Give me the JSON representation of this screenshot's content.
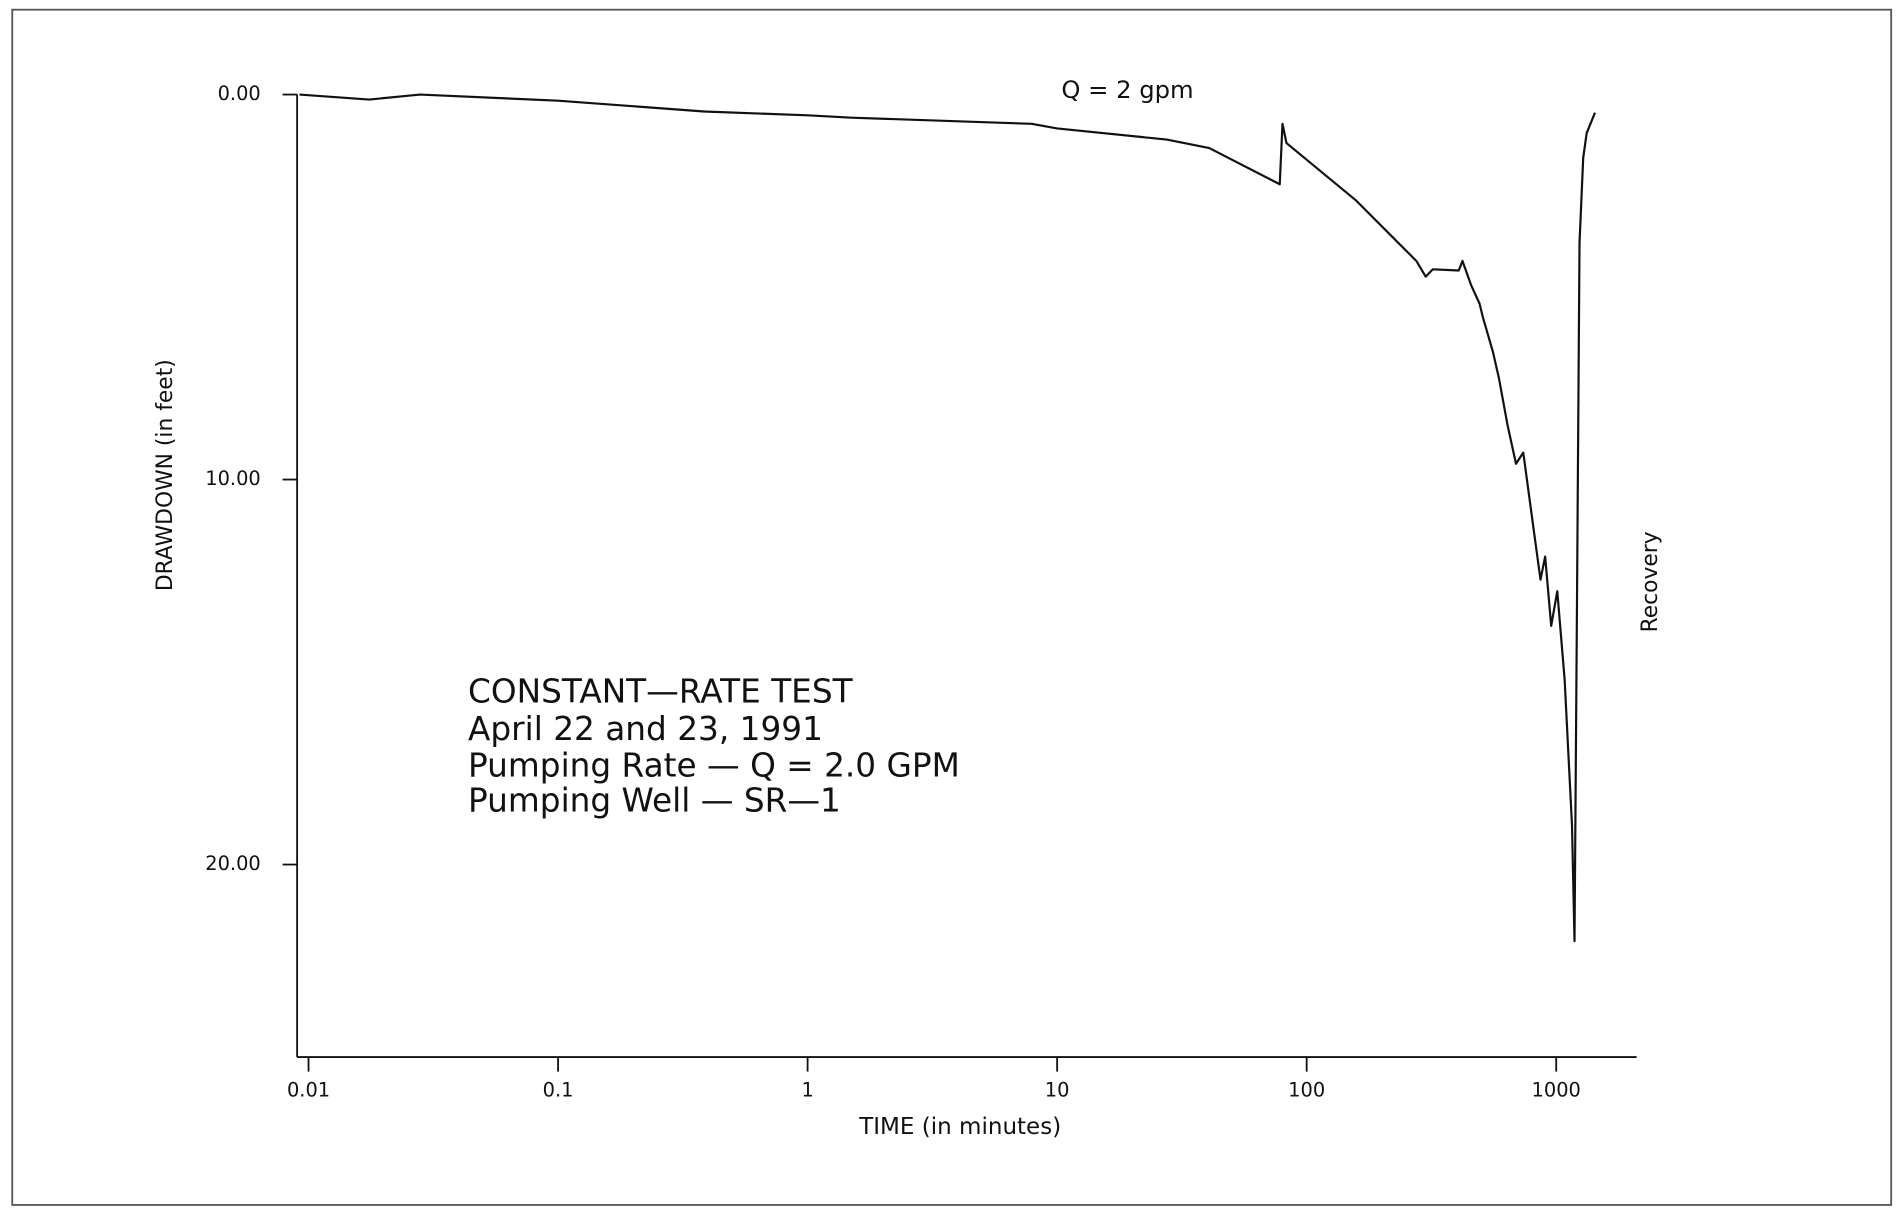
{
  "chart_data": {
    "type": "line",
    "x_label": "TIME (in minutes)",
    "y_label": "DRAWDOWN (in feet)",
    "annotations": [
      "Q = 2 gpm",
      "Recovery"
    ],
    "note_lines": [
      "CONSTANT—RATE TEST",
      "April 22 and 23, 1991",
      "Pumping Rate — Q = 2.0 GPM",
      "Pumping Well — SR—1"
    ],
    "x_scale": "log",
    "y_inverted": true,
    "xlim": [
      0.009,
      2100
    ],
    "ylim": [
      0,
      25
    ],
    "xticks": [
      0.01,
      0.1,
      1,
      10,
      100,
      1000
    ],
    "yticks": [
      {
        "value": 0,
        "label": "0.00"
      },
      {
        "value": 10,
        "label": "10.00"
      },
      {
        "value": 20,
        "label": "20.00"
      }
    ],
    "color": "#111111",
    "x": [
      0.0092,
      0.0175,
      0.028,
      0.1,
      0.385,
      1.0,
      1.5,
      7.9,
      10,
      27.5,
      40.7,
      78,
      80,
      83,
      157,
      275,
      300,
      320,
      407,
      421,
      456,
      493,
      509,
      558,
      590,
      638,
      690,
      738,
      817,
      865,
      903,
      955,
      1010,
      1081,
      1157,
      1184,
      1211,
      1240,
      1283,
      1325,
      1416,
      1430
    ],
    "values": [
      0,
      0.13,
      0,
      0.16,
      0.44,
      0.54,
      0.6,
      0.76,
      0.88,
      1.17,
      1.39,
      2.33,
      0.76,
      1.26,
      2.74,
      4.32,
      4.73,
      4.54,
      4.57,
      4.32,
      4.95,
      5.43,
      5.8,
      6.69,
      7.38,
      8.58,
      9.59,
      9.3,
      11.42,
      12.6,
      12.0,
      13.8,
      12.9,
      15.2,
      18.99,
      21.99,
      13.3,
      3.85,
      1.64,
      1.0,
      0.54,
      0.47
    ]
  }
}
